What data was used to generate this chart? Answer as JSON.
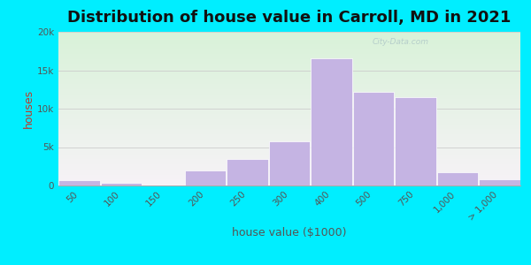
{
  "title": "Distribution of house value in Carroll, MD in 2021",
  "xlabel": "house value ($1000)",
  "ylabel": "houses",
  "bar_labels": [
    "50",
    "100",
    "150",
    "200",
    "250",
    "300",
    "400",
    "500",
    "750",
    "1,000",
    "> 1,000"
  ],
  "bar_values": [
    700,
    400,
    150,
    2000,
    3500,
    5800,
    16500,
    12200,
    11500,
    1700,
    800
  ],
  "bar_widths": [
    1,
    1,
    1,
    1,
    1,
    1,
    1,
    1,
    1,
    1,
    1
  ],
  "bar_color": "#c5b4e3",
  "bar_edgecolor": "#ffffff",
  "ylim": [
    0,
    20000
  ],
  "yticks": [
    0,
    5000,
    10000,
    15000,
    20000
  ],
  "ytick_labels": [
    "0",
    "5k",
    "10k",
    "15k",
    "20k"
  ],
  "title_fontsize": 13,
  "axis_label_fontsize": 9,
  "tick_fontsize": 7.5,
  "bg_outer": "#00eeff",
  "watermark_text": "City-Data.com",
  "ylabel_color": "#c0392b",
  "xlabel_color": "#555555",
  "title_color": "#111111",
  "grid_color": "#cccccc",
  "tick_label_color": "#555555"
}
